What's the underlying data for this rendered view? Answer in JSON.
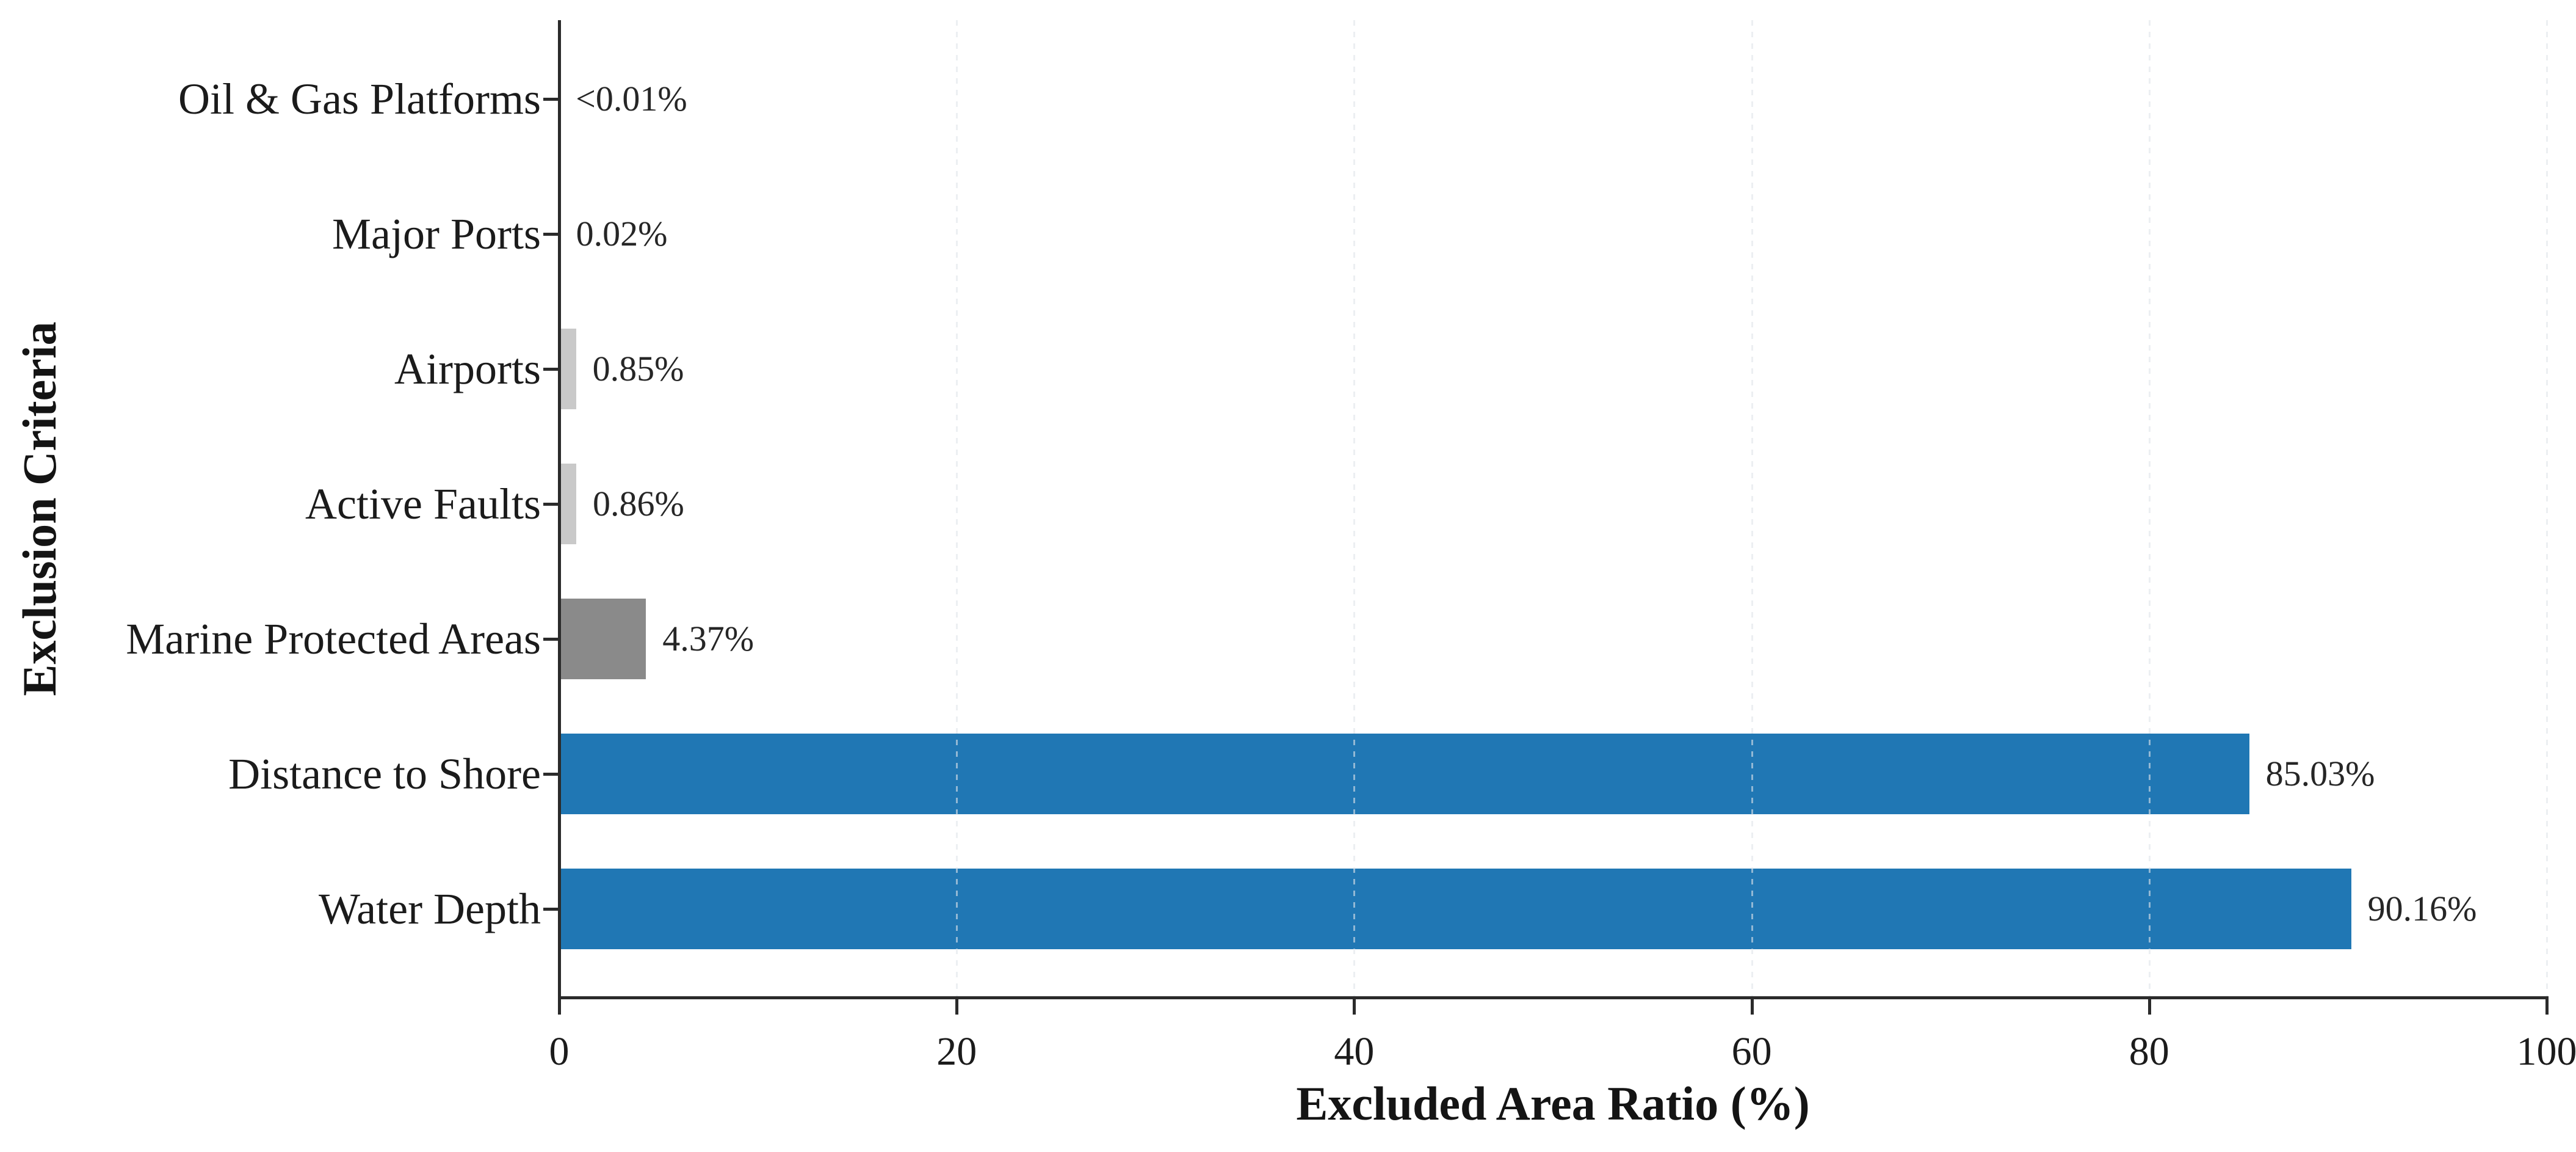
{
  "chart_data": {
    "type": "bar",
    "orientation": "horizontal",
    "title": "",
    "xlabel": "Excluded Area Ratio (%)",
    "ylabel": "Exclusion Criteria",
    "xlim": [
      0,
      100
    ],
    "x_ticks": [
      "0",
      "20",
      "40",
      "60",
      "80",
      "100"
    ],
    "x_tick_values": [
      0,
      20,
      40,
      60,
      80,
      100
    ],
    "grid": "vertical dotted gridlines at each x tick, drawn over bars",
    "legend": "none",
    "categories": [
      "Oil & Gas Platforms",
      "Major Ports",
      "Airports",
      "Active Faults",
      "Marine Protected Areas",
      "Distance to Shore",
      "Water Depth"
    ],
    "values": [
      0.005,
      0.02,
      0.85,
      0.86,
      4.37,
      85.03,
      90.16
    ],
    "value_labels": [
      "<0.01%",
      "0.02%",
      "0.85%",
      "0.86%",
      "4.37%",
      "85.03%",
      "90.16%"
    ],
    "bar_colors": [
      "#c9c9c9",
      "#c9c9c9",
      "#c9c9c9",
      "#c9c9c9",
      "#8a8a8a",
      "#2077b4",
      "#2077b4"
    ],
    "colors": {
      "small_criteria_gray": "#c9c9c9",
      "marine_protected_gray": "#8a8a8a",
      "main_criteria_blue": "#2077b4",
      "axis": "#2b2b2b",
      "text": "#1b1b1b"
    }
  }
}
